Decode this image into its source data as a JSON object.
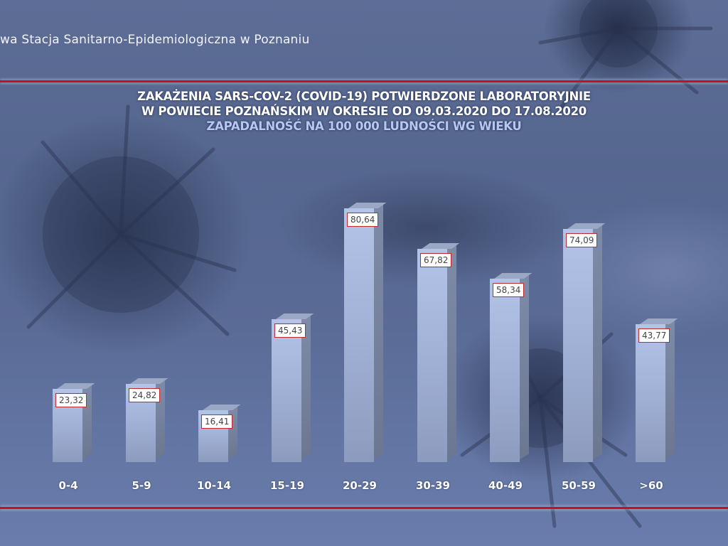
{
  "header": {
    "organization_text": "wa Stacja Sanitarno-Epidemiologiczna w Poznaniu"
  },
  "colors": {
    "divider_red": "#c0141a",
    "bar_front": "#a3b3d8",
    "bar_side": "#76839f",
    "label_border": "#c0282c",
    "title_white": "#ffffff",
    "subtitle_blue": "#b6c8f2"
  },
  "chart_data": {
    "type": "bar",
    "title": "ZAKAŻENIA SARS-COV-2 (COVID-19) POTWIERDZONE LABORATORYJNIE W POWIECIE POZNAŃSKIM W OKRESIE OD 09.03.2020 DO 17.08.2020",
    "title_lines": [
      "ZAKAŻENIA SARS-COV-2 (COVID-19) POTWIERDZONE LABORATORYJNIE",
      "W POWIECIE POZNAŃSKIM W OKRESIE OD 09.03.2020 DO 17.08.2020"
    ],
    "subtitle": "ZAPADALNOŚĆ NA 100 000 LUDNOŚCI WG WIEKU",
    "xlabel": "",
    "ylabel": "",
    "categories": [
      "0-4",
      "5-9",
      "10-14",
      "15-19",
      "20-29",
      "30-39",
      "40-49",
      "50-59",
      ">60"
    ],
    "values": [
      23.32,
      24.82,
      16.41,
      45.43,
      80.64,
      67.82,
      58.34,
      74.09,
      43.77
    ],
    "value_labels": [
      "23,32",
      "24,82",
      "16,41",
      "45,43",
      "80,64",
      "67,82",
      "58,34",
      "74,09",
      "43,77"
    ],
    "ylim": [
      0,
      85
    ],
    "grid": false,
    "legend": "none",
    "style": "3d-columns with data labels"
  }
}
